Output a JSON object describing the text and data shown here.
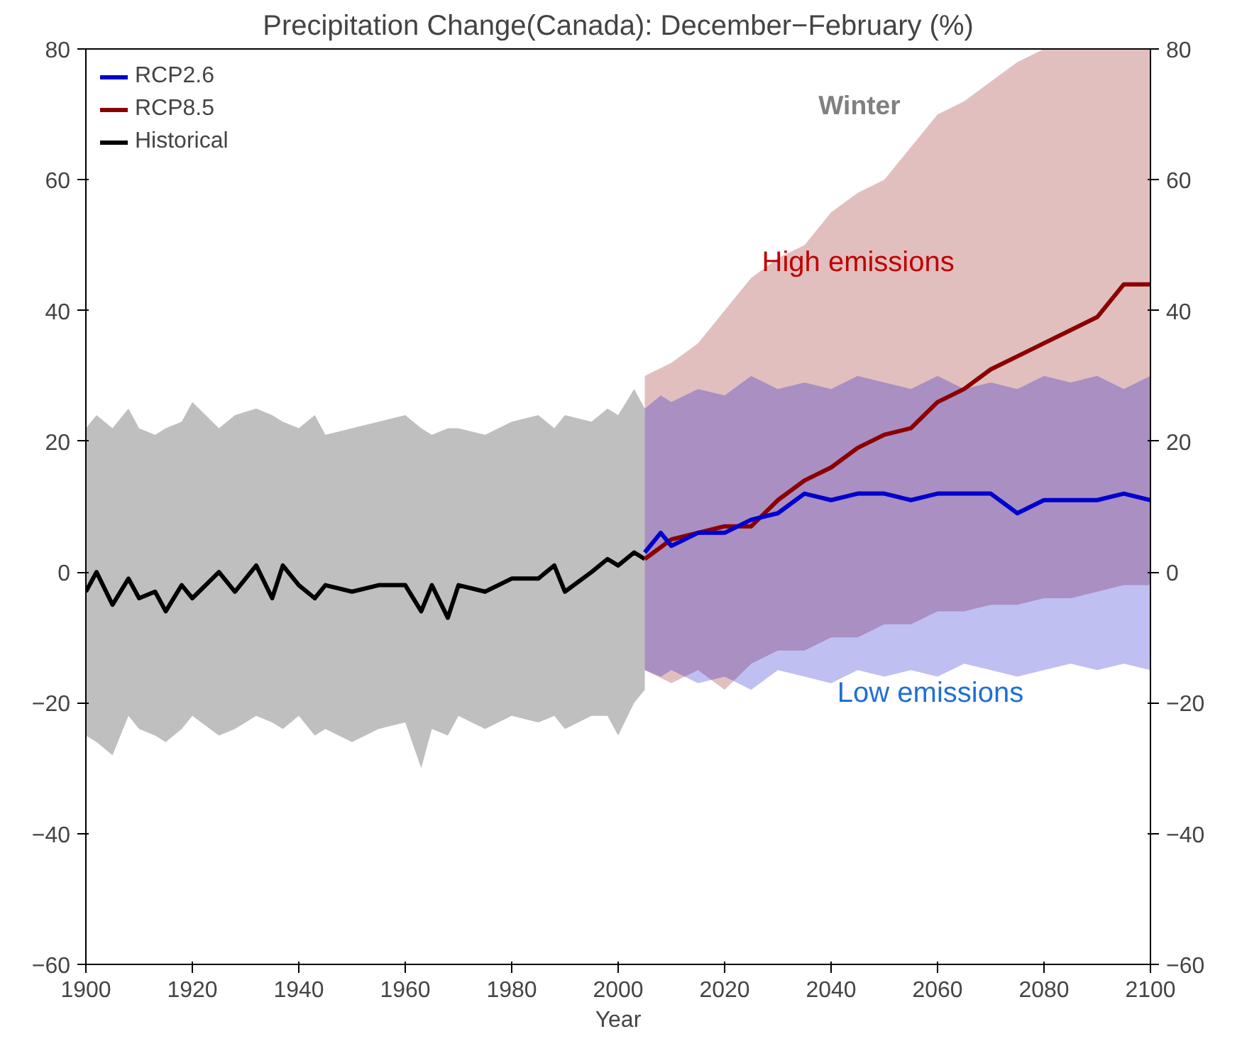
{
  "chart_data": {
    "type": "line",
    "title": "Precipitation Change(Canada): December−February (%)",
    "xlabel": "Year",
    "xlim": [
      1900,
      2100
    ],
    "xticks": [
      1900,
      1920,
      1940,
      1960,
      1980,
      2000,
      2020,
      2040,
      2060,
      2080,
      2100
    ],
    "ylim": [
      -60,
      80
    ],
    "yticks": [
      -60,
      -40,
      -20,
      0,
      20,
      40,
      60,
      80
    ],
    "y2lim": [
      -60,
      80
    ],
    "y2ticks": [
      -60,
      -40,
      -20,
      0,
      20,
      40,
      60,
      80
    ],
    "grid": false,
    "legend": "top left",
    "series": [
      {
        "name": "Historical",
        "color": "#000000",
        "x": [
          1900,
          1902,
          1905,
          1908,
          1910,
          1913,
          1915,
          1918,
          1920,
          1925,
          1928,
          1932,
          1935,
          1937,
          1940,
          1943,
          1945,
          1950,
          1955,
          1960,
          1963,
          1965,
          1968,
          1970,
          1975,
          1980,
          1985,
          1988,
          1990,
          1995,
          1998,
          2000,
          2003,
          2005
        ],
        "values": [
          -3,
          0,
          -5,
          -1,
          -4,
          -3,
          -6,
          -2,
          -4,
          0,
          -3,
          1,
          -4,
          1,
          -2,
          -4,
          -2,
          -3,
          -2,
          -2,
          -6,
          -2,
          -7,
          -2,
          -3,
          -1,
          -1,
          1,
          -3,
          0,
          2,
          1,
          3,
          2
        ],
        "lower": [
          -25,
          -26,
          -28,
          -22,
          -24,
          -25,
          -26,
          -24,
          -22,
          -25,
          -24,
          -22,
          -23,
          -24,
          -22,
          -25,
          -24,
          -26,
          -24,
          -23,
          -30,
          -24,
          -25,
          -22,
          -24,
          -22,
          -23,
          -22,
          -24,
          -22,
          -22,
          -25,
          -20,
          -18
        ],
        "upper": [
          22,
          24,
          22,
          25,
          22,
          21,
          22,
          23,
          26,
          22,
          24,
          25,
          24,
          23,
          22,
          24,
          21,
          22,
          23,
          24,
          22,
          21,
          22,
          22,
          21,
          23,
          24,
          22,
          24,
          23,
          25,
          24,
          28,
          25
        ]
      },
      {
        "name": "RCP8.5",
        "color": "#8b0000",
        "x": [
          2005,
          2010,
          2015,
          2020,
          2025,
          2030,
          2035,
          2040,
          2045,
          2050,
          2055,
          2060,
          2065,
          2070,
          2075,
          2080,
          2085,
          2090,
          2095,
          2100
        ],
        "values": [
          2,
          5,
          6,
          7,
          7,
          11,
          14,
          16,
          19,
          21,
          22,
          26,
          28,
          31,
          33,
          35,
          37,
          39,
          44,
          44
        ],
        "lower": [
          -15,
          -17,
          -15,
          -18,
          -14,
          -12,
          -12,
          -10,
          -10,
          -8,
          -8,
          -6,
          -6,
          -5,
          -5,
          -4,
          -4,
          -3,
          -2,
          -2
        ],
        "upper": [
          30,
          32,
          35,
          40,
          45,
          48,
          50,
          55,
          58,
          60,
          65,
          70,
          72,
          75,
          78,
          80,
          80,
          80,
          80,
          80
        ]
      },
      {
        "name": "RCP2.6",
        "color": "#0000cc",
        "x": [
          2005,
          2008,
          2010,
          2015,
          2020,
          2025,
          2030,
          2035,
          2040,
          2045,
          2050,
          2055,
          2060,
          2065,
          2070,
          2075,
          2080,
          2085,
          2090,
          2095,
          2100
        ],
        "values": [
          3,
          6,
          4,
          6,
          6,
          8,
          9,
          12,
          11,
          12,
          12,
          11,
          12,
          12,
          12,
          9,
          11,
          11,
          11,
          12,
          11
        ],
        "lower": [
          -15,
          -16,
          -15,
          -17,
          -16,
          -18,
          -15,
          -16,
          -17,
          -15,
          -16,
          -15,
          -16,
          -14,
          -15,
          -16,
          -15,
          -14,
          -15,
          -14,
          -15
        ],
        "upper": [
          25,
          27,
          26,
          28,
          27,
          30,
          28,
          29,
          28,
          30,
          29,
          28,
          30,
          28,
          29,
          28,
          30,
          29,
          30,
          28,
          30
        ]
      }
    ],
    "annotations": [
      "Winter",
      {
        "text": "High emissions",
        "x": 2027,
        "y": 45
      },
      "Low emissions"
    ]
  }
}
